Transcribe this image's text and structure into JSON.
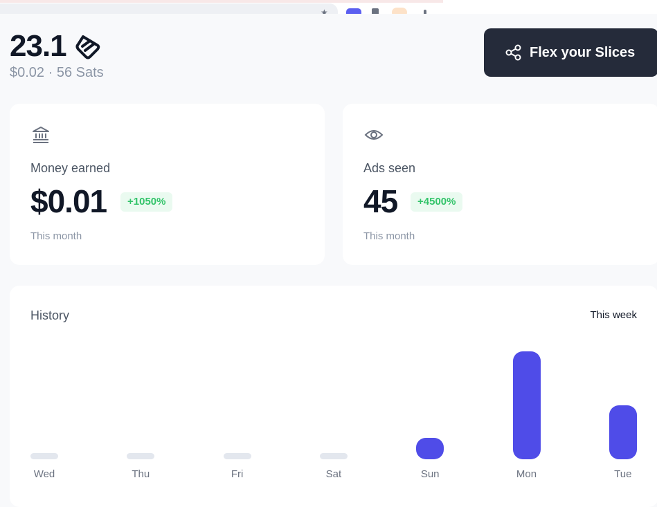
{
  "balance": {
    "value": "23.1",
    "icon": "slice-icon",
    "subtitle": "$0.02 · 56 Sats"
  },
  "flex_button": {
    "label": "Flex your Slices",
    "icon": "share-icon"
  },
  "cards": {
    "money": {
      "icon": "bank-icon",
      "label": "Money earned",
      "value": "$0.01",
      "badge": "+1050%",
      "footer": "This month"
    },
    "ads": {
      "icon": "eye-icon",
      "label": "Ads seen",
      "value": "45",
      "badge": "+4500%",
      "footer": "This month"
    }
  },
  "history": {
    "title": "History",
    "range": "This week"
  },
  "colors": {
    "accent": "#4f4ce8",
    "button_bg": "#252b3a",
    "badge_bg": "#eafaf0",
    "badge_text": "#33c46a",
    "empty_bar": "#e3e7ee"
  },
  "chart_data": {
    "type": "bar",
    "categories": [
      "Wed",
      "Thu",
      "Fri",
      "Sat",
      "Sun",
      "Mon",
      "Tue"
    ],
    "values": [
      0,
      0,
      0,
      0,
      0.2,
      1.0,
      0.5
    ],
    "title": "History",
    "xlabel": "",
    "ylabel": "",
    "grid": false
  }
}
